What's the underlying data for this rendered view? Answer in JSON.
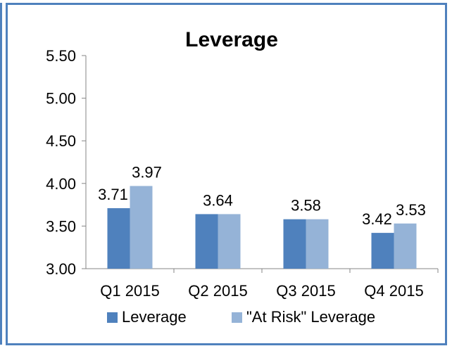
{
  "chart_data": {
    "type": "bar",
    "title": "Leverage",
    "xlabel": "",
    "ylabel": "",
    "categories": [
      "Q1 2015",
      "Q2 2015",
      "Q3 2015",
      "Q4 2015"
    ],
    "series": [
      {
        "name": "Leverage",
        "values": [
          3.71,
          3.64,
          3.58,
          3.42
        ],
        "color": "#4f81bd"
      },
      {
        "name": "\"At Risk\" Leverage",
        "values": [
          3.97,
          3.64,
          3.58,
          3.53
        ],
        "color": "#95b3d7"
      }
    ],
    "data_labels": [
      {
        "text": "3.71",
        "series": 0,
        "category": 0
      },
      {
        "text": "3.97",
        "series": 1,
        "category": 0
      },
      {
        "text": "3.64",
        "series": 0,
        "category": 1
      },
      {
        "text": "3.58",
        "series": 0,
        "category": 2
      },
      {
        "text": "3.42",
        "series": 0,
        "category": 3
      },
      {
        "text": "3.53",
        "series": 1,
        "category": 3
      }
    ],
    "ylim": [
      3.0,
      5.5
    ],
    "yticks": [
      "3.00",
      "3.50",
      "4.00",
      "4.50",
      "5.00",
      "5.50"
    ],
    "yticks_values": [
      3.0,
      3.5,
      4.0,
      4.5,
      5.0,
      5.5
    ],
    "grid": false,
    "legend_position": "bottom",
    "frame_color": "#4f81bd"
  }
}
